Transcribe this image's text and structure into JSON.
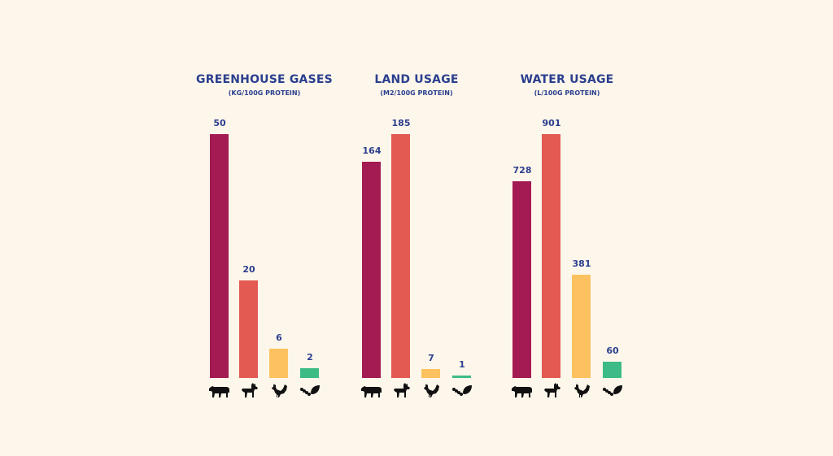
{
  "chart_data": [
    {
      "type": "bar",
      "title": "GREENHOUSE GASES",
      "subtitle": "(KG/100G PROTEIN)",
      "categories": [
        "cow-icon",
        "goat-icon",
        "chicken-icon",
        "insect-plant-icon"
      ],
      "values": [
        50,
        20,
        6,
        2
      ],
      "value_labels": [
        "50",
        "20",
        "6",
        "2"
      ],
      "ylim": [
        0,
        50
      ]
    },
    {
      "type": "bar",
      "title": "LAND USAGE",
      "subtitle": "(M2/100G PROTEIN)",
      "categories": [
        "cow-icon",
        "goat-icon",
        "chicken-icon",
        "insect-plant-icon"
      ],
      "values": [
        164,
        185,
        7,
        1
      ],
      "value_labels": [
        "164",
        "185",
        "7",
        "1"
      ],
      "ylim": [
        0,
        185
      ]
    },
    {
      "type": "bar",
      "title": "WATER USAGE",
      "subtitle": "(L/100G PROTEIN)",
      "categories": [
        "cow-icon",
        "goat-icon",
        "chicken-icon",
        "insect-plant-icon"
      ],
      "values": [
        728,
        901,
        381,
        60
      ],
      "value_labels": [
        "728",
        "901",
        "381",
        "60"
      ],
      "ylim": [
        0,
        901
      ]
    }
  ],
  "colors": {
    "background": "#fdf6ea",
    "text": "#2b3f8f",
    "series": [
      "#a31b52",
      "#e25a52",
      "#fdc25f",
      "#3dbb86"
    ],
    "icon": "#111111"
  }
}
